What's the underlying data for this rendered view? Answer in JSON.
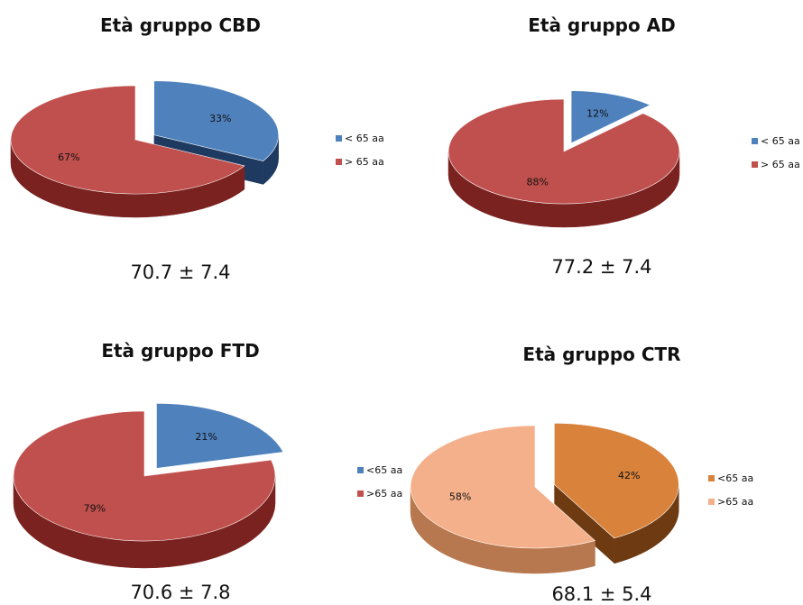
{
  "chart_data": [
    {
      "type": "pie",
      "title": "Età gruppo CBD",
      "slices": [
        {
          "label": "< 65 aa",
          "value": 33,
          "display": "33%"
        },
        {
          "label": "> 65 aa",
          "value": 67,
          "display": "67%"
        }
      ],
      "stat": "70.7 ± 7.4",
      "colors": {
        "top": [
          "#4F81BD",
          "#C0504D"
        ],
        "side": [
          "#1F3A60",
          "#7A2220"
        ]
      },
      "legend_position": "right"
    },
    {
      "type": "pie",
      "title": "Età gruppo AD",
      "slices": [
        {
          "label": "< 65 aa",
          "value": 12,
          "display": "12%"
        },
        {
          "label": "> 65 aa",
          "value": 88,
          "display": "88%"
        }
      ],
      "stat": "77.2 ± 7.4",
      "colors": {
        "top": [
          "#4F81BD",
          "#C0504D"
        ],
        "side": [
          "#1F3A60",
          "#7A2220"
        ]
      },
      "legend_position": "right"
    },
    {
      "type": "pie",
      "title": "Età gruppo FTD",
      "slices": [
        {
          "label": "<65 aa",
          "value": 21,
          "display": "21%"
        },
        {
          "label": ">65 aa",
          "value": 79,
          "display": "79%"
        }
      ],
      "stat": "70.6 ± 7.8",
      "colors": {
        "top": [
          "#4F81BD",
          "#C0504D"
        ],
        "side": [
          "#1F3A60",
          "#7A2220"
        ]
      },
      "legend_position": "right"
    },
    {
      "type": "pie",
      "title": "Età gruppo CTR",
      "slices": [
        {
          "label": "<65 aa",
          "value": 42,
          "display": "42%"
        },
        {
          "label": ">65 aa",
          "value": 58,
          "display": "58%"
        }
      ],
      "stat": "68.1 ± 5.4",
      "colors": {
        "top": [
          "#D9823B",
          "#F4B08A"
        ],
        "side": [
          "#6E3A12",
          "#B8784F"
        ]
      },
      "legend_position": "right"
    }
  ]
}
